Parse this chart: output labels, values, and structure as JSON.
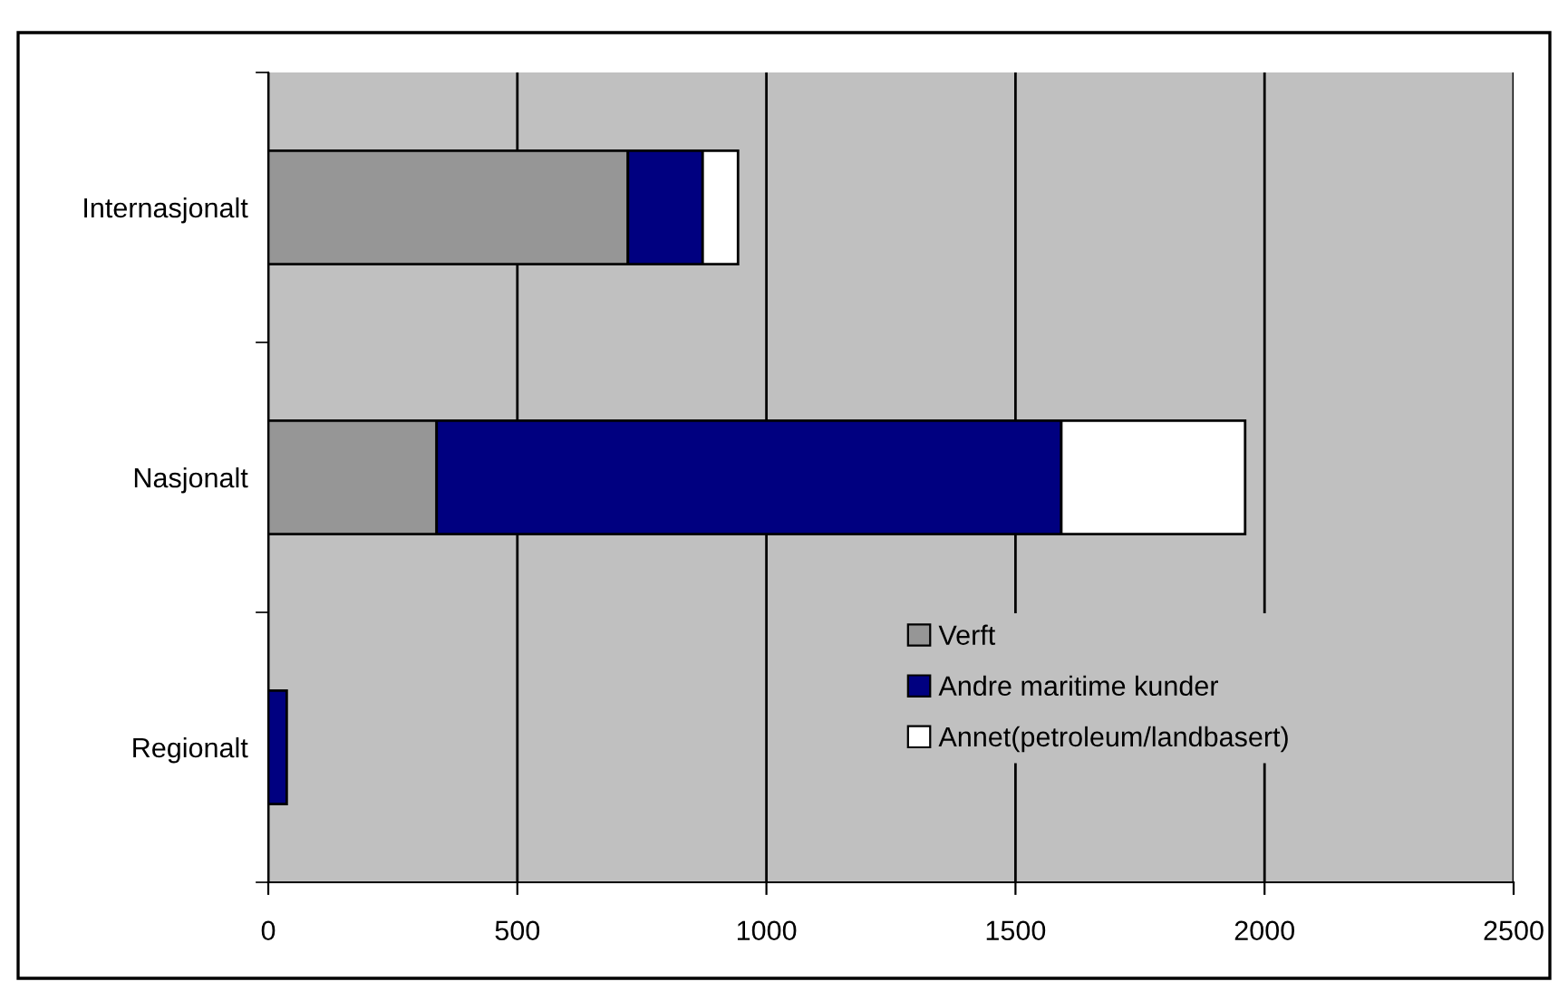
{
  "chart_data": {
    "type": "bar",
    "orientation": "horizontal",
    "stacked": true,
    "categories": [
      "Internasjonalt",
      "Nasjonalt",
      "Regionalt"
    ],
    "series": [
      {
        "name": "Verft",
        "color": "#969696",
        "values": [
          722,
          338,
          null
        ]
      },
      {
        "name": "Andre maritime kunder",
        "color": "#000080",
        "values": [
          150,
          1254,
          37
        ]
      },
      {
        "name": "Annet(petroleum/landbasert)",
        "color": "#ffffff",
        "values": [
          71,
          369,
          null
        ]
      }
    ],
    "xlim": [
      0,
      2500
    ],
    "xticks": [
      0,
      500,
      1000,
      1500,
      2000,
      2500
    ],
    "grid": "x",
    "legend": "lower right"
  }
}
